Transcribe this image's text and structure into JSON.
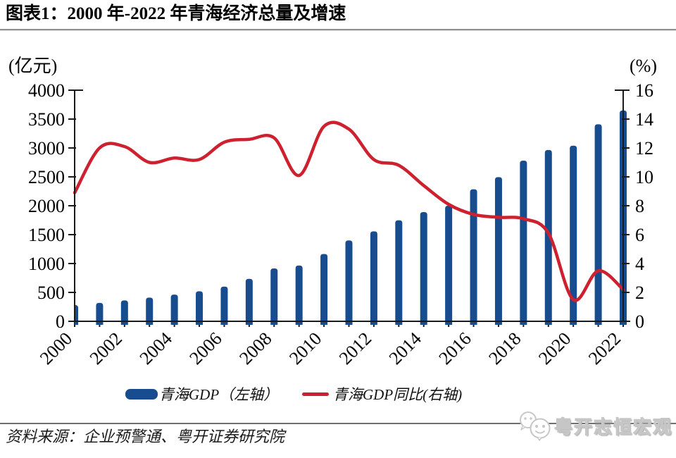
{
  "header": {
    "title": "图表1：2000 年-2022 年青海经济总量及增速"
  },
  "chart_data": {
    "type": "bar",
    "subtype": "combo-bar-line-dual-axis",
    "categories": [
      2000,
      2001,
      2002,
      2003,
      2004,
      2005,
      2006,
      2007,
      2008,
      2009,
      2010,
      2011,
      2012,
      2013,
      2014,
      2015,
      2016,
      2017,
      2018,
      2019,
      2020,
      2021,
      2022
    ],
    "series": [
      {
        "name": "青海GDP（左轴）",
        "type": "bar",
        "axis": "left",
        "color": "#174C8F",
        "values": [
          280,
          318,
          362,
          410,
          462,
          520,
          600,
          735,
          915,
          965,
          1165,
          1400,
          1557,
          1748,
          1890,
          2000,
          2285,
          2495,
          2780,
          2965,
          3040,
          3410,
          3650
        ]
      },
      {
        "name": "青海GDP同比(右轴)",
        "type": "line",
        "axis": "right",
        "color": "#CE2130",
        "values": [
          8.9,
          12.0,
          12.1,
          11.0,
          11.3,
          11.2,
          12.4,
          12.6,
          12.7,
          10.1,
          13.5,
          13.3,
          11.2,
          10.8,
          9.4,
          8.1,
          7.4,
          7.2,
          7.1,
          6.1,
          1.5,
          3.5,
          2.2
        ]
      }
    ],
    "left_axis": {
      "unit": "(亿元)",
      "min": 0,
      "max": 4000,
      "step": 500,
      "tick_labels": [
        "0",
        "500",
        "1000",
        "1500",
        "2000",
        "2500",
        "3000",
        "3500",
        "4000"
      ]
    },
    "right_axis": {
      "unit": "(%)",
      "min": 0,
      "max": 16,
      "step": 2,
      "tick_labels": [
        "0",
        "2",
        "4",
        "6",
        "8",
        "10",
        "12",
        "14",
        "16"
      ]
    },
    "x_axis": {
      "label_every": 2,
      "label_rotation": -45,
      "tick_labels": [
        "2000",
        "2002",
        "2004",
        "2006",
        "2008",
        "2010",
        "2012",
        "2014",
        "2016",
        "2018",
        "2020",
        "2022"
      ]
    },
    "grid": false,
    "legend_position": "bottom"
  },
  "legend": {
    "items": [
      {
        "label": "青海GDP（左轴）",
        "color": "#174C8F",
        "marker": "bar"
      },
      {
        "label": "青海GDP同比(右轴)",
        "color": "#CE2130",
        "marker": "line"
      }
    ]
  },
  "footer": {
    "source": "资料来源：企业预警通、粤开证券研究院"
  },
  "watermark": {
    "text": "粤开志恒宏观"
  }
}
